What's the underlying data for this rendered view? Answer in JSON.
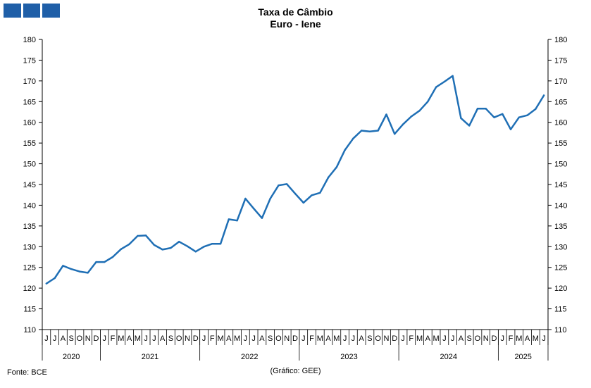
{
  "logo_color": "#1f5fa8",
  "source_label": "Fonte: BCE",
  "credit_label": "(Gráfico: GEE)",
  "chart_data": {
    "type": "line",
    "title": "Taxa de Câmbio",
    "subtitle": "Euro - Iene",
    "ylim": [
      110,
      180
    ],
    "ytick_step": 5,
    "grid": false,
    "line_color": "#1f6fb5",
    "month_letters": [
      "J",
      "J",
      "A",
      "S",
      "O",
      "N",
      "D",
      "J",
      "F",
      "M",
      "A",
      "M",
      "J",
      "J",
      "A",
      "S",
      "O",
      "N",
      "D",
      "J",
      "F",
      "M",
      "A",
      "M",
      "J",
      "J",
      "A",
      "S",
      "O",
      "N",
      "D",
      "J",
      "F",
      "M",
      "A",
      "M",
      "J",
      "J",
      "A",
      "S",
      "O",
      "N",
      "D",
      "J",
      "F",
      "M",
      "A",
      "M",
      "J",
      "J",
      "A",
      "S",
      "O",
      "N",
      "D",
      "J",
      "F",
      "M",
      "A",
      "M",
      "J"
    ],
    "year_labels": [
      {
        "label": "2020",
        "from": 0,
        "to": 6
      },
      {
        "label": "2021",
        "from": 7,
        "to": 18
      },
      {
        "label": "2022",
        "from": 19,
        "to": 30
      },
      {
        "label": "2023",
        "from": 31,
        "to": 42
      },
      {
        "label": "2024",
        "from": 43,
        "to": 54
      },
      {
        "label": "2025",
        "from": 55,
        "to": 60
      }
    ],
    "series": [
      {
        "values": [
          121.1,
          122.4,
          125.4,
          124.6,
          124.0,
          123.7,
          126.3,
          126.3,
          127.5,
          129.4,
          130.6,
          132.6,
          132.7,
          130.4,
          129.3,
          129.7,
          131.2,
          130.1,
          128.8,
          130.0,
          130.7,
          130.7,
          136.6,
          136.3,
          141.6,
          139.2,
          136.9,
          141.6,
          144.8,
          145.1,
          142.8,
          140.6,
          142.4,
          143.0,
          146.7,
          149.2,
          153.3,
          156.1,
          158.0,
          157.8,
          158.0,
          161.9,
          157.2,
          159.5,
          161.4,
          162.8,
          165.0,
          168.5,
          169.8,
          171.2,
          161.0,
          159.2,
          163.3,
          163.3,
          161.2,
          162.0,
          158.3,
          161.2,
          161.7,
          163.2,
          166.5
        ]
      }
    ]
  }
}
